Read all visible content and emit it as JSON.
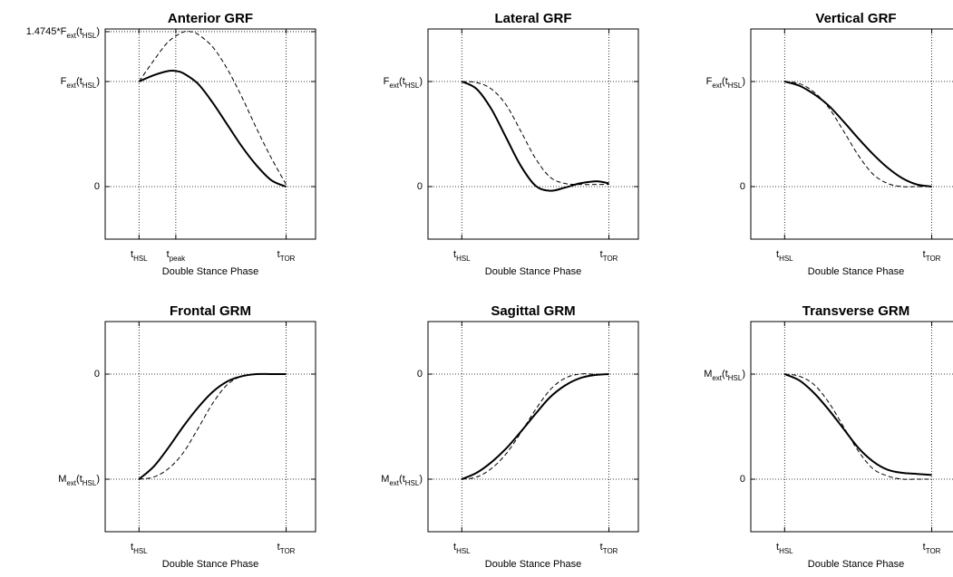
{
  "chart_data": [
    {
      "type": "line",
      "title": "Anterior GRF",
      "xlabel": "Double Stance Phase",
      "xlim": [
        -0.23,
        1.2
      ],
      "ylim": [
        -0.5,
        1.5
      ],
      "x_ticks": [
        {
          "value": 0,
          "main": "t",
          "sub": "HSL"
        },
        {
          "value": 0.25,
          "main": "t",
          "sub": "peak"
        },
        {
          "value": 1,
          "main": "t",
          "sub": "TOR"
        }
      ],
      "y_ticks": [
        {
          "value": 0,
          "main": "0",
          "sub": "",
          "post": ""
        },
        {
          "value": 1,
          "main": "F",
          "sub": "ext",
          "post": "(t",
          "sub2": "HSL",
          "post2": ")"
        },
        {
          "value": 1.4745,
          "main": "1.4745*F",
          "sub": "ext",
          "post": "(t",
          "sub2": "HSL",
          "post2": ")"
        }
      ],
      "series": [
        {
          "style": "solid",
          "x": [
            0,
            0.1,
            0.2,
            0.25,
            0.3,
            0.4,
            0.5,
            0.6,
            0.7,
            0.8,
            0.9,
            1.0
          ],
          "y": [
            1.0,
            1.06,
            1.1,
            1.1,
            1.08,
            0.98,
            0.8,
            0.59,
            0.38,
            0.2,
            0.06,
            0.0
          ]
        },
        {
          "style": "dashed",
          "x": [
            0,
            0.1,
            0.2,
            0.3,
            0.35,
            0.4,
            0.5,
            0.6,
            0.7,
            0.8,
            0.9,
            1.0
          ],
          "y": [
            1.0,
            1.2,
            1.38,
            1.47,
            1.4745,
            1.45,
            1.33,
            1.12,
            0.85,
            0.55,
            0.27,
            0.02
          ]
        }
      ]
    },
    {
      "type": "line",
      "title": "Lateral GRF",
      "xlabel": "Double Stance Phase",
      "xlim": [
        -0.23,
        1.2
      ],
      "ylim": [
        -0.5,
        1.5
      ],
      "x_ticks": [
        {
          "value": 0,
          "main": "t",
          "sub": "HSL"
        },
        {
          "value": 1,
          "main": "t",
          "sub": "TOR"
        }
      ],
      "y_ticks": [
        {
          "value": 0,
          "main": "0",
          "sub": "",
          "post": ""
        },
        {
          "value": 1,
          "main": "F",
          "sub": "ext",
          "post": "(t",
          "sub2": "HSL",
          "post2": ")"
        }
      ],
      "series": [
        {
          "style": "solid",
          "x": [
            0,
            0.1,
            0.2,
            0.3,
            0.4,
            0.5,
            0.6,
            0.7,
            0.8,
            0.9,
            0.95,
            1.0
          ],
          "y": [
            1.0,
            0.93,
            0.74,
            0.47,
            0.2,
            0.01,
            -0.04,
            -0.01,
            0.03,
            0.05,
            0.045,
            0.03
          ]
        },
        {
          "style": "dashed",
          "x": [
            0,
            0.1,
            0.2,
            0.3,
            0.4,
            0.5,
            0.6,
            0.7,
            0.8,
            0.9,
            1.0
          ],
          "y": [
            1.0,
            0.99,
            0.93,
            0.78,
            0.53,
            0.27,
            0.09,
            0.03,
            0.02,
            0.02,
            0.02
          ]
        }
      ]
    },
    {
      "type": "line",
      "title": "Vertical GRF",
      "xlabel": "Double Stance Phase",
      "xlim": [
        -0.23,
        1.2
      ],
      "ylim": [
        -0.5,
        1.5
      ],
      "x_ticks": [
        {
          "value": 0,
          "main": "t",
          "sub": "HSL"
        },
        {
          "value": 1,
          "main": "t",
          "sub": "TOR"
        }
      ],
      "y_ticks": [
        {
          "value": 0,
          "main": "0",
          "sub": "",
          "post": ""
        },
        {
          "value": 1,
          "main": "F",
          "sub": "ext",
          "post": "(t",
          "sub2": "HSL",
          "post2": ")"
        }
      ],
      "series": [
        {
          "style": "solid",
          "x": [
            0,
            0.1,
            0.2,
            0.3,
            0.4,
            0.5,
            0.6,
            0.7,
            0.8,
            0.9,
            1.0
          ],
          "y": [
            1.0,
            0.96,
            0.88,
            0.77,
            0.62,
            0.46,
            0.31,
            0.18,
            0.08,
            0.02,
            0.0
          ]
        },
        {
          "style": "dashed",
          "x": [
            0,
            0.1,
            0.2,
            0.3,
            0.4,
            0.5,
            0.6,
            0.7,
            0.8,
            0.9,
            1.0
          ],
          "y": [
            1.0,
            0.98,
            0.9,
            0.75,
            0.53,
            0.3,
            0.12,
            0.03,
            0.0,
            0.0,
            0.0
          ]
        }
      ]
    },
    {
      "type": "line",
      "title": "Frontal GRM",
      "xlabel": "Double Stance Phase",
      "xlim": [
        -0.23,
        1.2
      ],
      "ylim": [
        -1.5,
        0.5
      ],
      "x_ticks": [
        {
          "value": 0,
          "main": "t",
          "sub": "HSL"
        },
        {
          "value": 1,
          "main": "t",
          "sub": "TOR"
        }
      ],
      "y_ticks": [
        {
          "value": -1,
          "main": "M",
          "sub": "ext",
          "post": "(t",
          "sub2": "HSL",
          "post2": ")"
        },
        {
          "value": 0,
          "main": "0",
          "sub": "",
          "post": ""
        }
      ],
      "series": [
        {
          "style": "solid",
          "x": [
            0,
            0.1,
            0.2,
            0.3,
            0.4,
            0.5,
            0.6,
            0.7,
            0.8,
            0.9,
            1.0
          ],
          "y": [
            -1.0,
            -0.88,
            -0.7,
            -0.5,
            -0.32,
            -0.17,
            -0.07,
            -0.02,
            0.0,
            0.0,
            0.0
          ]
        },
        {
          "style": "dashed",
          "x": [
            0,
            0.1,
            0.2,
            0.3,
            0.4,
            0.5,
            0.6,
            0.7,
            0.8,
            0.9,
            1.0
          ],
          "y": [
            -1.0,
            -0.98,
            -0.9,
            -0.75,
            -0.52,
            -0.28,
            -0.1,
            -0.02,
            0.0,
            0.0,
            0.0
          ]
        }
      ]
    },
    {
      "type": "line",
      "title": "Sagittal GRM",
      "xlabel": "Double Stance Phase",
      "xlim": [
        -0.23,
        1.2
      ],
      "ylim": [
        -1.5,
        0.5
      ],
      "x_ticks": [
        {
          "value": 0,
          "main": "t",
          "sub": "HSL"
        },
        {
          "value": 1,
          "main": "t",
          "sub": "TOR"
        }
      ],
      "y_ticks": [
        {
          "value": -1,
          "main": "M",
          "sub": "ext",
          "post": "(t",
          "sub2": "HSL",
          "post2": ")"
        },
        {
          "value": 0,
          "main": "0",
          "sub": "",
          "post": ""
        }
      ],
      "series": [
        {
          "style": "solid",
          "x": [
            0,
            0.1,
            0.2,
            0.3,
            0.4,
            0.5,
            0.6,
            0.7,
            0.8,
            0.9,
            1.0
          ],
          "y": [
            -1.0,
            -0.94,
            -0.84,
            -0.71,
            -0.55,
            -0.38,
            -0.22,
            -0.11,
            -0.04,
            -0.01,
            0.0
          ]
        },
        {
          "style": "dashed",
          "x": [
            0,
            0.1,
            0.2,
            0.3,
            0.4,
            0.5,
            0.6,
            0.7,
            0.8,
            0.9,
            1.0
          ],
          "y": [
            -1.0,
            -0.98,
            -0.9,
            -0.76,
            -0.56,
            -0.34,
            -0.15,
            -0.04,
            0.0,
            0.0,
            0.0
          ]
        }
      ]
    },
    {
      "type": "line",
      "title": "Transverse GRM",
      "xlabel": "Double Stance Phase",
      "xlim": [
        -0.23,
        1.2
      ],
      "ylim": [
        -0.5,
        1.5
      ],
      "x_ticks": [
        {
          "value": 0,
          "main": "t",
          "sub": "HSL"
        },
        {
          "value": 1,
          "main": "t",
          "sub": "TOR"
        }
      ],
      "y_ticks": [
        {
          "value": 0,
          "main": "0",
          "sub": "",
          "post": ""
        },
        {
          "value": 1,
          "main": "M",
          "sub": "ext",
          "post": "(t",
          "sub2": "HSL",
          "post2": ")"
        }
      ],
      "series": [
        {
          "style": "solid",
          "x": [
            0,
            0.1,
            0.2,
            0.3,
            0.4,
            0.5,
            0.6,
            0.7,
            0.8,
            0.9,
            1.0
          ],
          "y": [
            1.0,
            0.94,
            0.82,
            0.66,
            0.48,
            0.3,
            0.17,
            0.09,
            0.06,
            0.05,
            0.04
          ]
        },
        {
          "style": "dashed",
          "x": [
            0,
            0.1,
            0.2,
            0.3,
            0.4,
            0.5,
            0.6,
            0.7,
            0.8,
            0.9,
            1.0
          ],
          "y": [
            1.0,
            0.98,
            0.9,
            0.73,
            0.5,
            0.27,
            0.1,
            0.03,
            0.0,
            0.0,
            0.0
          ]
        }
      ]
    }
  ]
}
